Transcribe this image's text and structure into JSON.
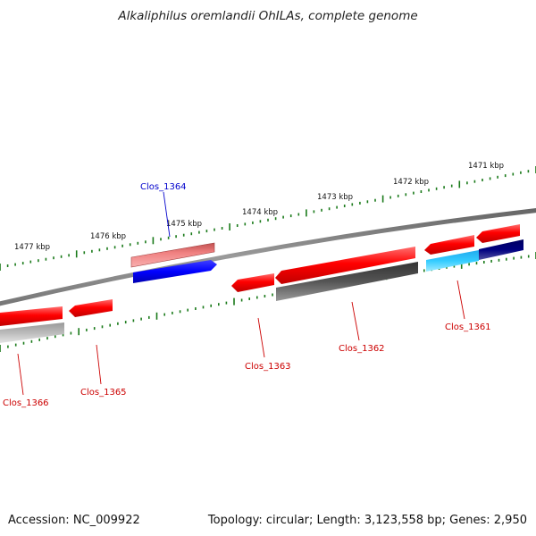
{
  "title": "Alkaliphilus oremlandii OhILAs, complete genome",
  "footer": {
    "accession": "Accession: NC_009922",
    "summary": "Topology: circular; Length: 3,123,558 bp; Genes: 2,950"
  },
  "ruler_labels": [
    "1477 kbp",
    "1476 kbp",
    "1475 kbp",
    "1474 kbp",
    "1473 kbp",
    "1472 kbp",
    "1471 kbp"
  ],
  "gene_labels": [
    {
      "id": "Clos_1364",
      "color": "#0000cc"
    },
    {
      "id": "Clos_1366",
      "color": "#cc0000"
    },
    {
      "id": "Clos_1365",
      "color": "#cc0000"
    },
    {
      "id": "Clos_1363",
      "color": "#cc0000"
    },
    {
      "id": "Clos_1362",
      "color": "#cc0000"
    },
    {
      "id": "Clos_1361",
      "color": "#cc0000"
    }
  ],
  "colors": {
    "backbone": "#808080",
    "tick": "#1a7a1a",
    "gene_red": "#ff0000",
    "gene_pink": "#f08080",
    "gene_blue": "#0000ff",
    "gene_cyan": "#33ccff",
    "gene_navy": "#000080",
    "gene_dark_gray": "#555555",
    "gene_light_gray": "#bbbbbb"
  }
}
